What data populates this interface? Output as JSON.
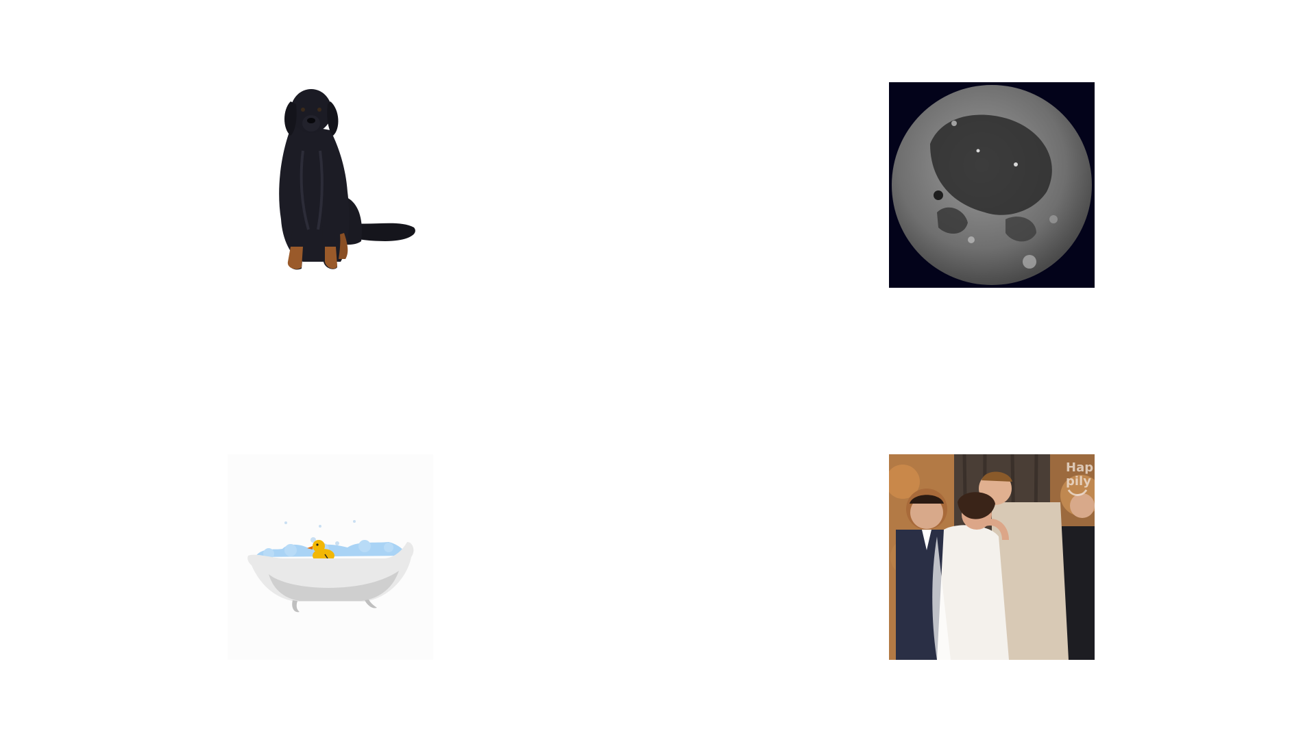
{
  "tiles": [
    {
      "id": "dog",
      "icon": "dog-image"
    },
    {
      "id": "moon",
      "icon": "moon-image"
    },
    {
      "id": "bath",
      "icon": "bathtub-duck-image"
    },
    {
      "id": "wedding",
      "icon": "wedding-kiss-image"
    }
  ],
  "wedding": {
    "watermark_line1": "Hap",
    "watermark_line2": "pily"
  },
  "colors": {
    "background": "#ffffff",
    "moon_bg": "#03031a",
    "bath_water": "#a9d3f5",
    "duck": "#f2b705"
  }
}
